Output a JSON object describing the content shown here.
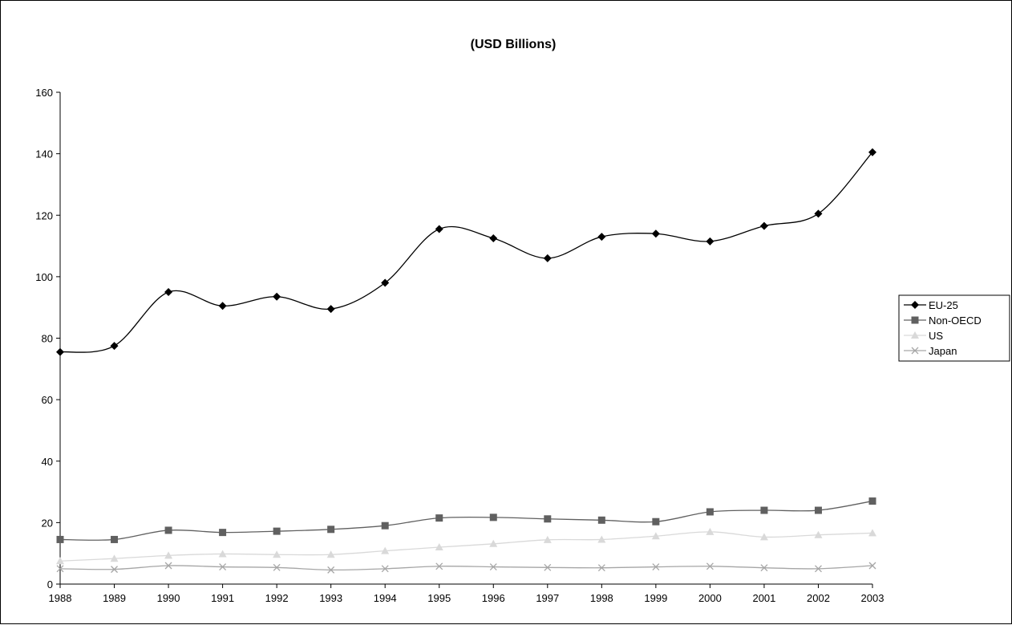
{
  "chart_data": {
    "type": "line",
    "title": "(USD Billions)",
    "xlabel": "",
    "ylabel": "",
    "x": [
      "1988",
      "1989",
      "1990",
      "1991",
      "1992",
      "1993",
      "1994",
      "1995",
      "1996",
      "1997",
      "1998",
      "1999",
      "2000",
      "2001",
      "2002",
      "2003"
    ],
    "ylim": [
      0,
      160
    ],
    "yticks": [
      0,
      20,
      40,
      60,
      80,
      100,
      120,
      140,
      160
    ],
    "grid": false,
    "legend": "right",
    "series": [
      {
        "name": "EU-25",
        "color": "#000000",
        "marker": "diamond",
        "values": [
          75.5,
          77.5,
          95,
          90.5,
          93.5,
          89.5,
          98,
          115.5,
          112.5,
          106,
          113,
          114,
          111.5,
          116.5,
          120.5,
          140.5
        ]
      },
      {
        "name": "Non-OECD",
        "color": "#606060",
        "marker": "square",
        "values": [
          14.5,
          14.5,
          17.5,
          16.8,
          17.2,
          17.8,
          19,
          21.5,
          21.7,
          21.2,
          20.8,
          20.3,
          23.5,
          24,
          24,
          27
        ]
      },
      {
        "name": "US",
        "color": "#d9d9d9",
        "marker": "triangle",
        "values": [
          7.5,
          8.3,
          9.3,
          9.8,
          9.6,
          9.6,
          10.8,
          12,
          13.1,
          14.4,
          14.5,
          15.6,
          17,
          15.3,
          16,
          16.6
        ]
      },
      {
        "name": "Japan",
        "color": "#a6a6a6",
        "marker": "x",
        "values": [
          5,
          4.8,
          6,
          5.6,
          5.4,
          4.6,
          5,
          5.8,
          5.6,
          5.4,
          5.3,
          5.6,
          5.8,
          5.3,
          5,
          6
        ]
      }
    ]
  }
}
